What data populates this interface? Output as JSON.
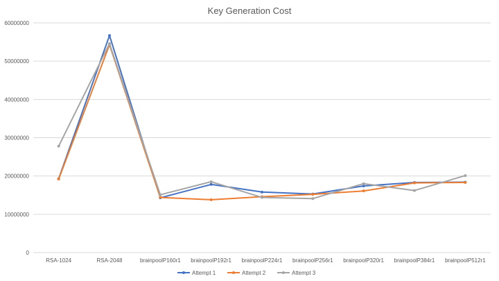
{
  "chart_data": {
    "type": "line",
    "title": "Key Generation Cost",
    "xlabel": "",
    "ylabel": "",
    "categories": [
      "RSA-1024",
      "RSA-2048",
      "brainpoolP160r1",
      "brainpoolP192r1",
      "brainpoolP224r1",
      "brainpoolP256r1",
      "brainpoolP320r1",
      "brainpoolP384r1",
      "brainpoolP512r1"
    ],
    "ylim": [
      0,
      60000000
    ],
    "yticks": [
      0,
      10000000,
      20000000,
      30000000,
      40000000,
      50000000,
      60000000
    ],
    "grid": true,
    "legend_position": "bottom",
    "series": [
      {
        "name": "Attempt 1",
        "color": "#4472c4",
        "values": [
          19300000,
          56700000,
          14300000,
          17800000,
          15800000,
          15300000,
          17400000,
          18300000,
          18400000
        ]
      },
      {
        "name": "Attempt 2",
        "color": "#ed7d31",
        "values": [
          19200000,
          54300000,
          14400000,
          13800000,
          14600000,
          15200000,
          16100000,
          18200000,
          18300000
        ]
      },
      {
        "name": "Attempt 3",
        "color": "#a5a5a5",
        "values": [
          27800000,
          54600000,
          15100000,
          18500000,
          14400000,
          14100000,
          18000000,
          16200000,
          20100000
        ]
      }
    ]
  }
}
